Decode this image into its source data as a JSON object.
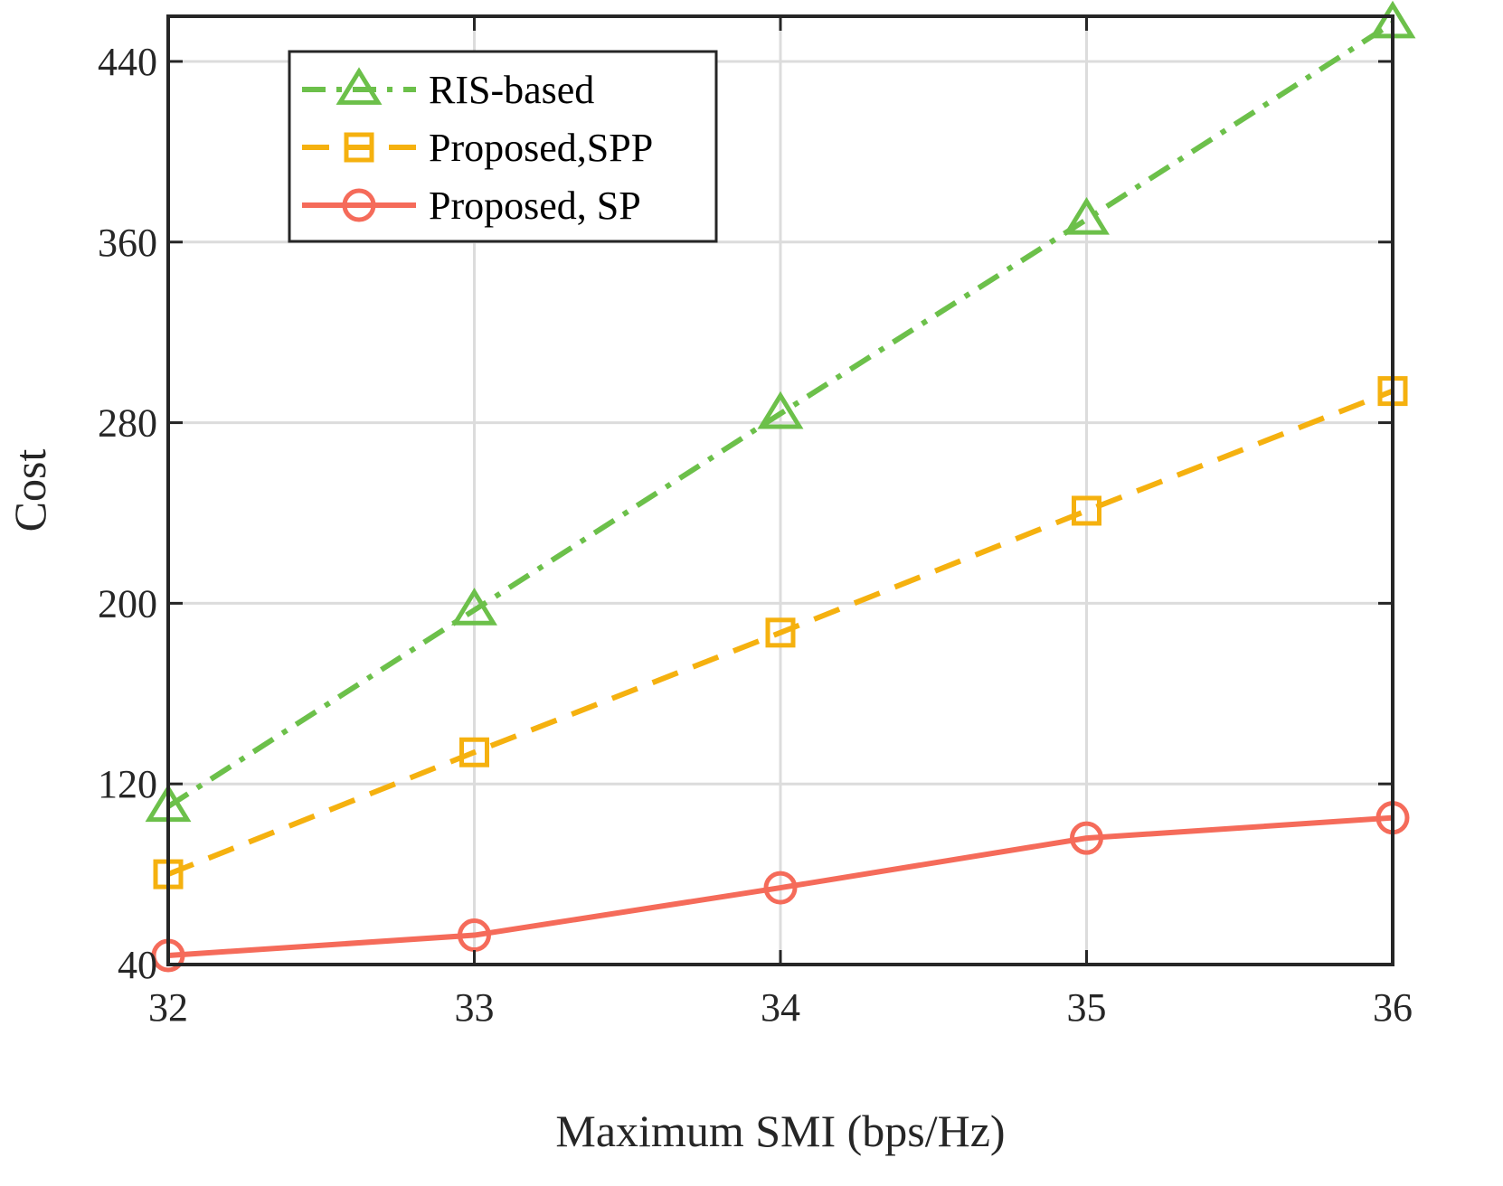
{
  "chart_data": {
    "type": "line",
    "title": "",
    "xlabel": "Maximum SMI (bps/Hz)",
    "ylabel": "Cost",
    "x": [
      32,
      33,
      34,
      35,
      36
    ],
    "xlim": [
      32,
      36
    ],
    "ylim": [
      40,
      460
    ],
    "xticks": [
      "32",
      "33",
      "34",
      "35",
      "36"
    ],
    "yticks": [
      40,
      120,
      200,
      280,
      360,
      440
    ],
    "grid": true,
    "legend_position": "top-left",
    "series": [
      {
        "name": "RIS-based",
        "values": [
          110,
          197,
          284,
          370,
          457
        ],
        "color": "#6cc04a",
        "line_style": "dash-dot",
        "marker": "triangle"
      },
      {
        "name": "Proposed,SPP",
        "values": [
          80,
          134,
          187,
          241,
          294
        ],
        "color": "#f5b10f",
        "line_style": "dashed",
        "marker": "square"
      },
      {
        "name": "Proposed, SP",
        "values": [
          44,
          53,
          74,
          96,
          105
        ],
        "color": "#f56b5a",
        "line_style": "solid",
        "marker": "circle"
      }
    ]
  }
}
